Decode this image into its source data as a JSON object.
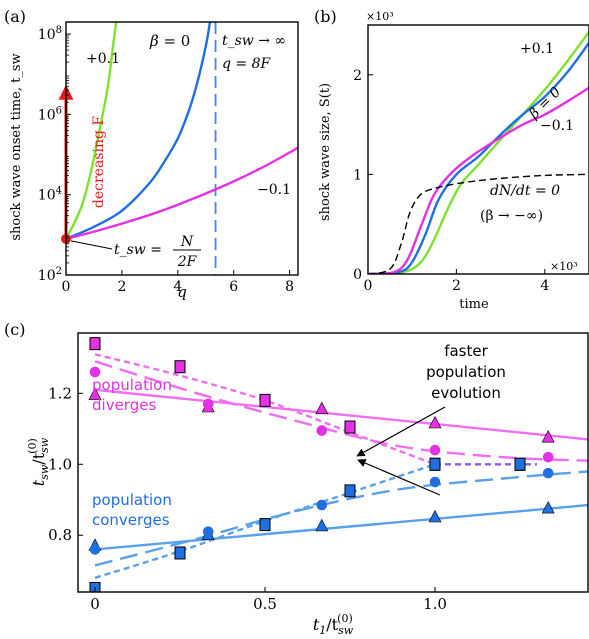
{
  "panels": {
    "a": {
      "label": "(a)"
    },
    "b": {
      "label": "(b)"
    },
    "c": {
      "label": "(c)"
    }
  },
  "colors": {
    "green": "#7fe12f",
    "blue": "#1f6fe0",
    "magenta": "#e331e3",
    "red": "#e81818",
    "dash_blue": "#3b8ae6",
    "pink": "#f06ef0",
    "lightblue": "#5aa0ea",
    "purple": "#8a5cf0"
  },
  "chart_data": [
    {
      "id": "a",
      "type": "line",
      "xlabel": "q",
      "ylabel": "shock wave onset time, t_sw",
      "xlim": [
        0,
        8.3
      ],
      "ylim_log10": [
        2,
        8.3
      ],
      "y_log_scale": true,
      "xticks": [
        "0",
        "2",
        "4",
        "6",
        "8"
      ],
      "yticks": [
        "10^2",
        "10^4",
        "10^6",
        "10^8"
      ],
      "series": [
        {
          "name": "+0.1",
          "color_key": "green",
          "x": [
            0,
            0.3,
            0.6,
            0.9,
            1.2,
            1.5,
            1.7,
            1.8
          ],
          "y_log10": [
            2.9,
            3.3,
            3.8,
            4.6,
            5.6,
            6.7,
            7.8,
            8.3
          ]
        },
        {
          "name": "β = 0",
          "color_key": "blue",
          "x": [
            0,
            1,
            2,
            3,
            3.5,
            4,
            4.4,
            4.7,
            5.0,
            5.15
          ],
          "y_log10": [
            2.9,
            3.2,
            3.6,
            4.3,
            4.8,
            5.4,
            6.1,
            6.8,
            7.7,
            8.3
          ]
        },
        {
          "name": "−0.1",
          "color_key": "magenta",
          "x": [
            0,
            1,
            2,
            3,
            4,
            5,
            6,
            7,
            8,
            8.3
          ],
          "y_log10": [
            2.9,
            3.08,
            3.28,
            3.5,
            3.75,
            4.03,
            4.33,
            4.67,
            5.05,
            5.17
          ]
        }
      ],
      "asymptote": {
        "x": 5.35,
        "label1": "t_sw → ∞",
        "label2": "q = 8F"
      },
      "arrow": {
        "label": "decreasing F"
      },
      "point": {
        "x": 0,
        "y_log10": 2.9,
        "label_lhs": "t_sw =",
        "label_num": "N",
        "label_den": "2F"
      },
      "labels": {
        "green": "+0.1",
        "blue_prefix": "β = ",
        "blue_val": "0",
        "magenta": "−0.1"
      }
    },
    {
      "id": "b",
      "type": "line",
      "xlabel": "time",
      "ylabel": "shock wave size, S(t)",
      "xlim": [
        0,
        5
      ],
      "ylim": [
        0,
        2.5
      ],
      "scale_label": "×10³",
      "xticks": [
        "0",
        "2",
        "4"
      ],
      "yticks": [
        "0",
        "1",
        "2"
      ],
      "series": [
        {
          "name": "+0.1",
          "color_key": "green",
          "x": [
            0,
            0.8,
            1.2,
            1.5,
            1.8,
            2.1,
            2.5,
            3,
            3.5,
            4,
            4.5,
            5
          ],
          "y": [
            0,
            0.02,
            0.12,
            0.35,
            0.65,
            0.9,
            1.1,
            1.35,
            1.6,
            1.85,
            2.13,
            2.43
          ]
        },
        {
          "name": "β = 0",
          "color_key": "blue",
          "x": [
            0,
            0.7,
            1.0,
            1.3,
            1.6,
            2.0,
            2.5,
            3,
            3.5,
            4,
            4.5,
            5
          ],
          "y": [
            0,
            0.02,
            0.12,
            0.4,
            0.75,
            1.0,
            1.18,
            1.4,
            1.6,
            1.78,
            2.02,
            2.32
          ]
        },
        {
          "name": "−0.1",
          "color_key": "magenta",
          "x": [
            0,
            0.6,
            0.9,
            1.2,
            1.5,
            1.9,
            2.4,
            3,
            3.5,
            4,
            4.5,
            5
          ],
          "y": [
            0,
            0.02,
            0.15,
            0.48,
            0.8,
            1.02,
            1.2,
            1.37,
            1.5,
            1.6,
            1.73,
            1.87
          ]
        },
        {
          "name": "dN/dt = 0",
          "color_key": "black",
          "dashed": true,
          "x": [
            0,
            0.5,
            0.75,
            0.95,
            1.2,
            1.6,
            2.2,
            3,
            4,
            5
          ],
          "y": [
            0,
            0.05,
            0.3,
            0.62,
            0.8,
            0.87,
            0.92,
            0.96,
            0.99,
            1.0
          ]
        }
      ],
      "labels": {
        "green": "+0.1",
        "blue": "β = 0",
        "magenta": "−0.1",
        "black1": "dN/dt = 0",
        "black2": "(β → −∞)"
      }
    },
    {
      "id": "c",
      "type": "scatter",
      "xlabel_main": "t",
      "xlabel_sub": "1",
      "xlabel_slash": "/t",
      "xlabel_sub2": "sw",
      "xlabel_sup2": "(0)",
      "ylabel_main": "t",
      "ylabel_sub": "sw",
      "ylabel_slash": "/t",
      "ylabel_sub2": "sw",
      "ylabel_sup2": "(0)",
      "xlim": [
        -0.05,
        1.45
      ],
      "ylim": [
        0.64,
        1.37
      ],
      "xticks": [
        "0",
        "0.5",
        "1.0"
      ],
      "yticks": [
        "0.8",
        "1.0",
        "1.2"
      ],
      "series": [
        {
          "name": "triangle-diverge",
          "marker": "triangle",
          "color_key": "magenta",
          "x": [
            0,
            0.333,
            0.667,
            1.0,
            1.333
          ],
          "y": [
            1.195,
            1.16,
            1.155,
            1.115,
            1.075
          ]
        },
        {
          "name": "circle-diverge",
          "marker": "circle",
          "color_key": "magenta",
          "x": [
            0,
            0.333,
            0.667,
            1.0,
            1.333
          ],
          "y": [
            1.26,
            1.17,
            1.095,
            1.04,
            1.02
          ]
        },
        {
          "name": "square-diverge",
          "marker": "square",
          "color_key": "magenta",
          "x": [
            0,
            0.25,
            0.5,
            0.75,
            1.0,
            1.25
          ],
          "y": [
            1.34,
            1.275,
            1.18,
            1.105,
            1.0,
            1.0
          ]
        },
        {
          "name": "triangle-converge",
          "marker": "triangle",
          "color_key": "blue",
          "x": [
            0,
            0.333,
            0.667,
            1.0,
            1.333
          ],
          "y": [
            0.77,
            0.8,
            0.825,
            0.85,
            0.875
          ]
        },
        {
          "name": "circle-converge",
          "marker": "circle",
          "color_key": "blue",
          "x": [
            0,
            0.333,
            0.667,
            1.0,
            1.333
          ],
          "y": [
            0.76,
            0.81,
            0.885,
            0.95,
            0.975
          ]
        },
        {
          "name": "square-converge",
          "marker": "square",
          "color_key": "blue",
          "x": [
            0,
            0.25,
            0.5,
            0.75,
            1.0,
            1.25
          ],
          "y": [
            0.65,
            0.75,
            0.83,
            0.925,
            1.0,
            1.0
          ]
        }
      ],
      "fits": [
        {
          "color_key": "pink",
          "style": "solid",
          "x": [
            0,
            1.45
          ],
          "y": [
            1.21,
            1.07
          ]
        },
        {
          "color_key": "pink",
          "style": "longdash",
          "x": [
            0,
            0.3,
            0.6,
            0.9,
            1.2,
            1.45
          ],
          "y": [
            1.29,
            1.2,
            1.12,
            1.05,
            1.02,
            1.01
          ]
        },
        {
          "color_key": "pink",
          "style": "shortdash",
          "x": [
            0,
            0.25,
            0.5,
            0.75,
            1.0
          ],
          "y": [
            1.31,
            1.25,
            1.18,
            1.09,
            1.0
          ]
        },
        {
          "color_key": "lightblue",
          "style": "solid",
          "x": [
            0,
            1.45
          ],
          "y": [
            0.76,
            0.885
          ]
        },
        {
          "color_key": "lightblue",
          "style": "longdash",
          "x": [
            0,
            0.3,
            0.6,
            0.9,
            1.2,
            1.45
          ],
          "y": [
            0.715,
            0.79,
            0.87,
            0.93,
            0.96,
            0.98
          ]
        },
        {
          "color_key": "lightblue",
          "style": "shortdash",
          "x": [
            0,
            0.25,
            0.5,
            0.75,
            1.0
          ],
          "y": [
            0.68,
            0.755,
            0.84,
            0.92,
            1.0
          ]
        },
        {
          "color_key": "purple",
          "style": "shortdash",
          "x": [
            1.0,
            1.3
          ],
          "y": [
            1.0,
            1.0
          ]
        }
      ],
      "labels": {
        "diverges1": "population",
        "diverges2": "diverges",
        "converges1": "population",
        "converges2": "converges",
        "faster1": "faster",
        "faster2": "population",
        "faster3": "evolution"
      }
    }
  ]
}
